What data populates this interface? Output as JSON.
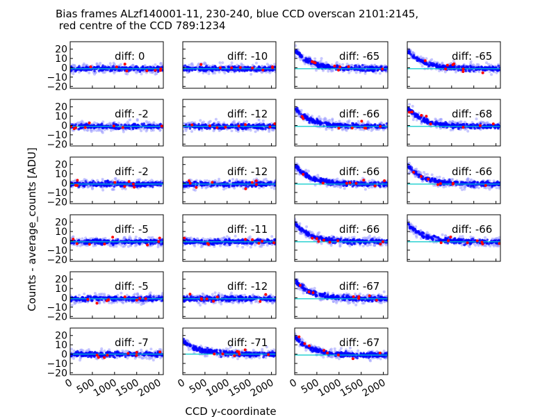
{
  "title_line1": "Bias frames ALzf140001-11, 230-240, blue CCD overscan 2101:2145,",
  "title_line2": " red centre of the CCD 789:1234",
  "chart_data": {
    "type": "scatter",
    "title": "Bias frames ALzf140001-11, 230-240, blue CCD overscan 2101:2145,  red centre of the CCD 789:1234",
    "xlabel": "CCD y-coordinate",
    "ylabel": "Counts - average_counts [ADU]",
    "x_range": [
      0,
      2100
    ],
    "y_range": [
      -22,
      28
    ],
    "xticks": [
      "0",
      "500",
      "1000",
      "1500",
      "2000"
    ],
    "yticks": [
      "20",
      "10",
      "0",
      "−10",
      "−20"
    ],
    "colors": {
      "points_main": "#0000ff",
      "points_light": "#9999ff",
      "outliers": "#ff0000",
      "reference_line": "#00c8c8"
    },
    "panels": [
      {
        "label": "diff:  0",
        "row": 0,
        "col": 0,
        "decay": 0,
        "offset": -1
      },
      {
        "label": "diff:  -10",
        "row": 0,
        "col": 1,
        "decay": 0,
        "offset": -1
      },
      {
        "label": "diff:  -65",
        "row": 0,
        "col": 2,
        "decay": 20,
        "offset": -1
      },
      {
        "label": "diff:  -65",
        "row": 0,
        "col": 3,
        "decay": 20,
        "offset": -1
      },
      {
        "label": "diff:  -2",
        "row": 1,
        "col": 0,
        "decay": 0,
        "offset": -1
      },
      {
        "label": "diff:  -12",
        "row": 1,
        "col": 1,
        "decay": 0,
        "offset": -1
      },
      {
        "label": "diff:  -66",
        "row": 1,
        "col": 2,
        "decay": 20,
        "offset": -1
      },
      {
        "label": "diff:  -68",
        "row": 1,
        "col": 3,
        "decay": 20,
        "offset": -1
      },
      {
        "label": "diff:  -2",
        "row": 2,
        "col": 0,
        "decay": 0,
        "offset": -1
      },
      {
        "label": "diff:  -12",
        "row": 2,
        "col": 1,
        "decay": 0,
        "offset": -1
      },
      {
        "label": "diff:  -66",
        "row": 2,
        "col": 2,
        "decay": 20,
        "offset": -1
      },
      {
        "label": "diff:  -66",
        "row": 2,
        "col": 3,
        "decay": 20,
        "offset": -1
      },
      {
        "label": "diff:  -5",
        "row": 3,
        "col": 0,
        "decay": 0,
        "offset": -1
      },
      {
        "label": "diff:  -11",
        "row": 3,
        "col": 1,
        "decay": 0,
        "offset": -1
      },
      {
        "label": "diff:  -66",
        "row": 3,
        "col": 2,
        "decay": 20,
        "offset": -1
      },
      {
        "label": "diff:  -66",
        "row": 3,
        "col": 3,
        "decay": 20,
        "offset": -1
      },
      {
        "label": "diff:  -5",
        "row": 4,
        "col": 0,
        "decay": 0,
        "offset": -1
      },
      {
        "label": "diff:  -12",
        "row": 4,
        "col": 1,
        "decay": 0,
        "offset": -1
      },
      {
        "label": "diff:  -67",
        "row": 4,
        "col": 2,
        "decay": 20,
        "offset": -1
      },
      {
        "label": "diff:  -7",
        "row": 5,
        "col": 0,
        "decay": 0,
        "offset": 0
      },
      {
        "label": "diff:  -71",
        "row": 5,
        "col": 1,
        "decay": 14,
        "offset": 0
      },
      {
        "label": "diff:  -67",
        "row": 5,
        "col": 2,
        "decay": 20,
        "offset": -1
      }
    ]
  }
}
